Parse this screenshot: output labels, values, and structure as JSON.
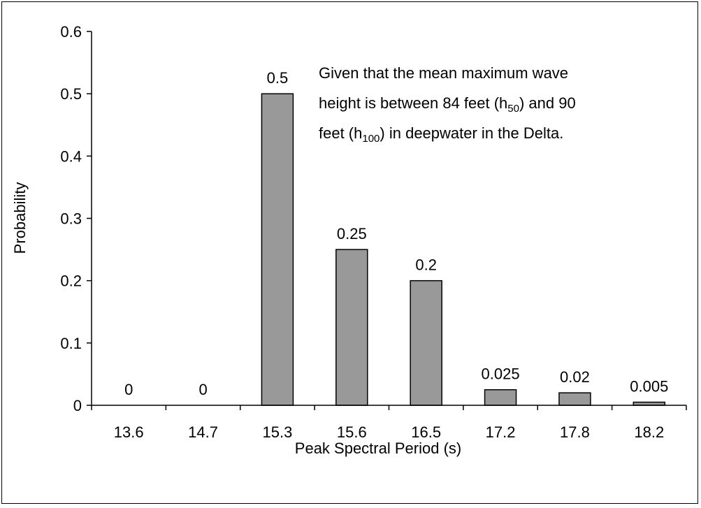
{
  "chart_data": {
    "type": "bar",
    "categories": [
      "13.6",
      "14.7",
      "15.3",
      "15.6",
      "16.5",
      "17.2",
      "17.8",
      "18.2"
    ],
    "values": [
      0,
      0,
      0.5,
      0.25,
      0.2,
      0.025,
      0.02,
      0.005
    ],
    "data_labels": [
      "0",
      "0",
      "0.5",
      "0.25",
      "0.2",
      "0.025",
      "0.02",
      "0.005"
    ],
    "xlabel": "Peak Spectral Period (s)",
    "ylabel": "Probability",
    "ylim": [
      0,
      0.6
    ],
    "yticks": [
      "0",
      "0.1",
      "0.2",
      "0.3",
      "0.4",
      "0.5",
      "0.6"
    ],
    "bar_color": "#999999",
    "grid": false,
    "annotation": {
      "line1": "Given that the mean maximum wave",
      "line2_a": "height is between 84 feet (h",
      "line2_sub": "50",
      "line2_b": ") and 90",
      "line3_a": "feet (h",
      "line3_sub": "100",
      "line3_b": ") in deepwater in the Delta."
    }
  }
}
